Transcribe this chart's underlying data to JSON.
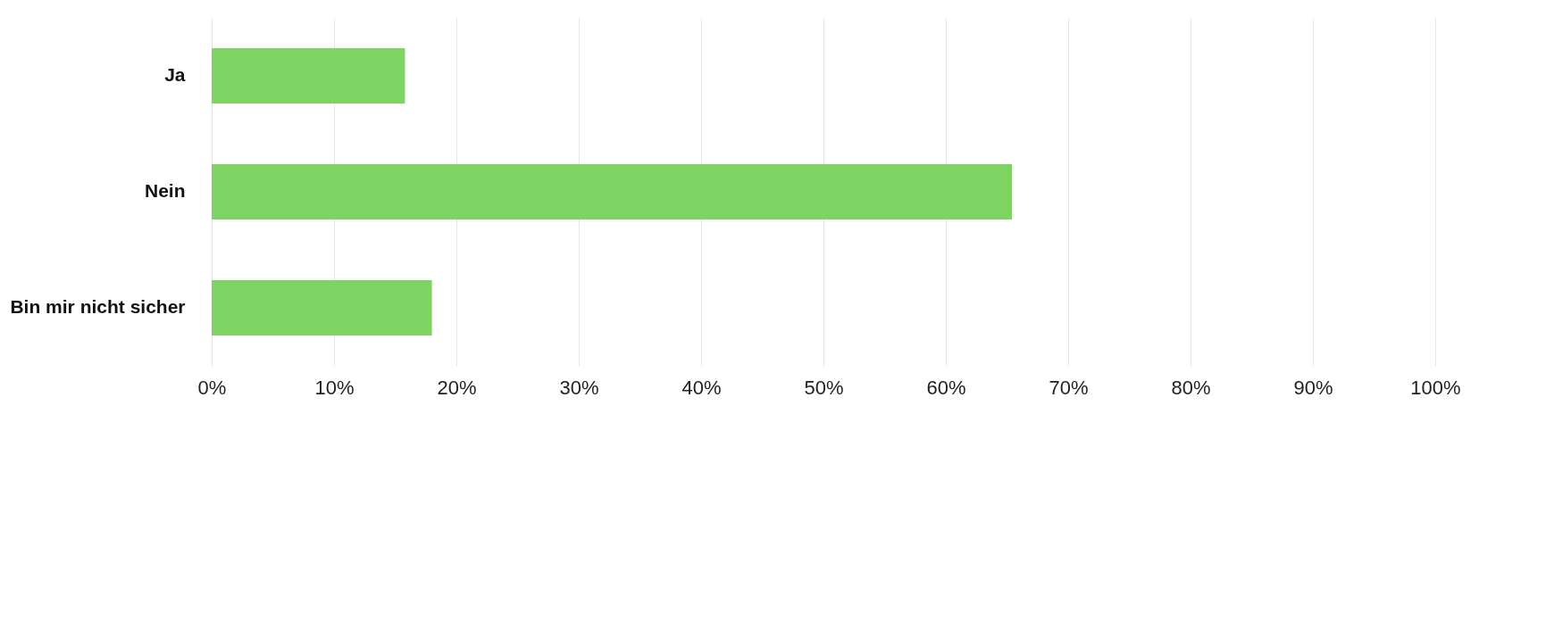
{
  "chart_data": {
    "type": "bar",
    "orientation": "horizontal",
    "categories": [
      "Ja",
      "Nein",
      "Bin mir nicht sicher"
    ],
    "values": [
      15.8,
      65.4,
      18.0
    ],
    "color": "#7fd363",
    "xlim": [
      0,
      100
    ],
    "xticks": [
      {
        "value": 0,
        "label": "0%"
      },
      {
        "value": 10,
        "label": "10%"
      },
      {
        "value": 20,
        "label": "20%"
      },
      {
        "value": 30,
        "label": "30%"
      },
      {
        "value": 40,
        "label": "40%"
      },
      {
        "value": 50,
        "label": "50%"
      },
      {
        "value": 60,
        "label": "60%"
      },
      {
        "value": 70,
        "label": "70%"
      },
      {
        "value": 80,
        "label": "80%"
      },
      {
        "value": 90,
        "label": "90%"
      },
      {
        "value": 100,
        "label": "100%"
      }
    ],
    "grid": "x"
  }
}
